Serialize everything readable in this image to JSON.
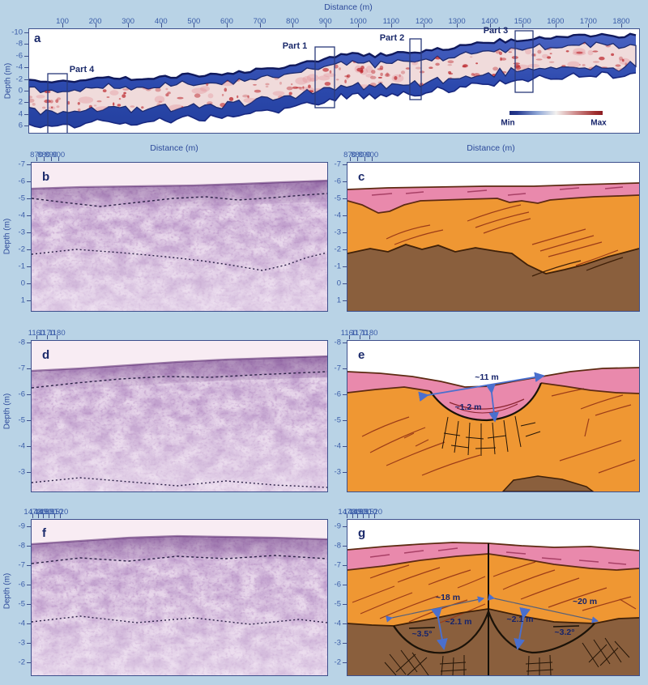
{
  "figure": {
    "background_color": "#b9d3e6"
  },
  "colors": {
    "axis_text": "#3a5ca8",
    "panel_letter": "#1b2a6b",
    "panel_border": "#3d4f8c",
    "radar_band_blue": "#2c49ad",
    "radar_core_red": "#c23b2e",
    "radargram_purple": "#8a5ca6",
    "radargram_sky": "#f8ecf3",
    "interp_pink": "#e989ac",
    "interp_orange": "#ef9733",
    "interp_brown": "#8a5f3d",
    "annotation_arrow_blue": "#4a6fce",
    "colorbar_min_color": "#1d2d7c",
    "colorbar_max_color": "#8c1d22"
  },
  "chart_data": [
    {
      "id": "a",
      "type": "heatmap",
      "xlabel": "Distance (m)",
      "ylabel": "Depth (m)",
      "xlim": [
        0,
        1860
      ],
      "ylim": [
        7,
        -10
      ],
      "x_ticks": [
        100,
        200,
        300,
        400,
        500,
        600,
        700,
        800,
        900,
        1000,
        1100,
        1200,
        1300,
        1400,
        1500,
        1600,
        1700,
        1800
      ],
      "y_ticks": [
        -10,
        -8,
        -6,
        -4,
        -2,
        0,
        2,
        4,
        6
      ],
      "colorbar": {
        "min": "Min",
        "max": "Max"
      },
      "highlight_boxes": [
        {
          "label": "Part 4",
          "x_range_m": [
            50,
            110
          ]
        },
        {
          "label": "Part 1",
          "x_range_m": [
            865,
            925
          ]
        },
        {
          "label": "Part 2",
          "x_range_m": [
            1155,
            1190
          ]
        },
        {
          "label": "Part 3",
          "x_range_m": [
            1475,
            1530
          ]
        }
      ]
    },
    {
      "id": "b",
      "type": "heatmap",
      "xlabel": "Distance (m)",
      "ylabel": "Depth (m)",
      "xlim": [
        870,
        910
      ],
      "ylim": [
        1.8,
        -7
      ],
      "x_ticks": [
        870,
        880,
        890,
        900
      ],
      "y_ticks": [
        -7,
        -6,
        -5,
        -4,
        -3,
        -2,
        -1,
        0,
        1
      ]
    },
    {
      "id": "c",
      "type": "interpretation",
      "xlabel": "Distance (m)",
      "xlim": [
        870,
        910
      ],
      "ylim": [
        1.8,
        -7
      ],
      "x_ticks": [
        870,
        880,
        890,
        900
      ],
      "y_ticks": [
        -7,
        -6,
        -5,
        -4,
        -3,
        -2,
        -1,
        0,
        1
      ],
      "layers": [
        "pink",
        "orange",
        "brown"
      ]
    },
    {
      "id": "d",
      "type": "heatmap",
      "ylabel": "Depth (m)",
      "xlim": [
        1160,
        1189
      ],
      "ylim": [
        -2.1,
        -8
      ],
      "x_ticks": [
        1160,
        1170,
        1180
      ],
      "y_ticks": [
        -8,
        -7,
        -6,
        -5,
        -4,
        -3
      ]
    },
    {
      "id": "e",
      "type": "interpretation",
      "xlim": [
        1160,
        1189
      ],
      "ylim": [
        -2.1,
        -8
      ],
      "x_ticks": [
        1160,
        1170,
        1180
      ],
      "y_ticks": [
        -8,
        -7,
        -6,
        -5,
        -4,
        -3
      ],
      "layers": [
        "pink",
        "orange",
        "brown"
      ],
      "annotations": [
        "~11 m",
        "~1.2 m"
      ]
    },
    {
      "id": "f",
      "type": "heatmap",
      "ylabel": "Depth (m)",
      "xlim": [
        1470,
        1525
      ],
      "ylim": [
        -1.2,
        -9
      ],
      "x_ticks": [
        1470,
        1480,
        1490,
        1500,
        1510,
        1520
      ],
      "y_ticks": [
        -9,
        -8,
        -7,
        -6,
        -5,
        -4,
        -3,
        -2
      ]
    },
    {
      "id": "g",
      "type": "interpretation",
      "xlim": [
        1470,
        1525
      ],
      "ylim": [
        -1.2,
        -9
      ],
      "x_ticks": [
        1470,
        1480,
        1490,
        1500,
        1510,
        1520
      ],
      "y_ticks": [
        -9,
        -8,
        -7,
        -6,
        -5,
        -4,
        -3,
        -2
      ],
      "layers": [
        "pink",
        "orange",
        "brown"
      ],
      "annotations": [
        "~18 m",
        "~2.1 m",
        "~3.5°",
        "~2.1 m",
        "~20 m",
        "~3.2°"
      ]
    }
  ]
}
